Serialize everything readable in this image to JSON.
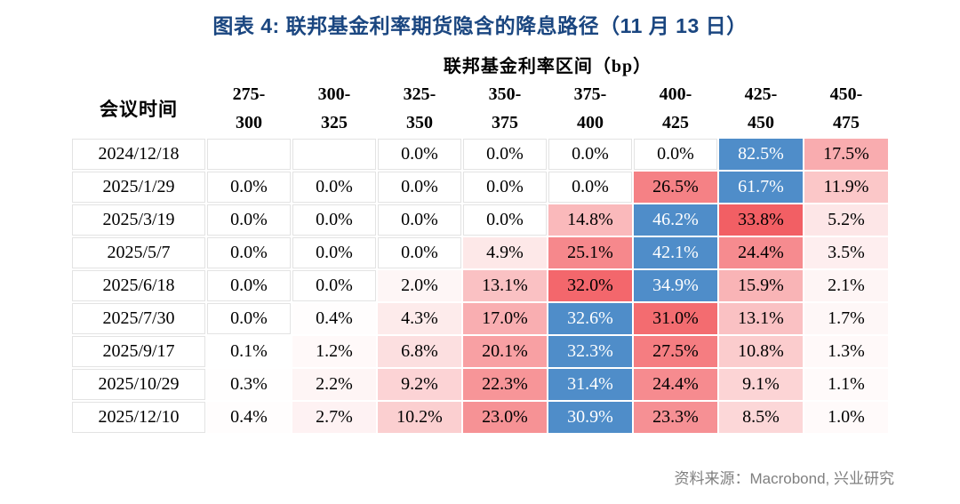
{
  "title": "图表 4:  联邦基金利率期货隐含的降息路径（11 月 13 日）",
  "table": {
    "group_header": "联邦基金利率区间（bp）",
    "corner_header": "会议时间",
    "columns": [
      [
        "275-",
        "300"
      ],
      [
        "300-",
        "325"
      ],
      [
        "325-",
        "350"
      ],
      [
        "350-",
        "375"
      ],
      [
        "375-",
        "400"
      ],
      [
        "400-",
        "425"
      ],
      [
        "425-",
        "450"
      ],
      [
        "450-",
        "475"
      ]
    ],
    "rows": [
      {
        "date": "2024/12/18",
        "cells": [
          "",
          "",
          "0.0%",
          "0.0%",
          "0.0%",
          "0.0%",
          "82.5%",
          "17.5%"
        ]
      },
      {
        "date": "2025/1/29",
        "cells": [
          "0.0%",
          "0.0%",
          "0.0%",
          "0.0%",
          "0.0%",
          "26.5%",
          "61.7%",
          "11.9%"
        ]
      },
      {
        "date": "2025/3/19",
        "cells": [
          "0.0%",
          "0.0%",
          "0.0%",
          "0.0%",
          "14.8%",
          "46.2%",
          "33.8%",
          "5.2%"
        ]
      },
      {
        "date": "2025/5/7",
        "cells": [
          "0.0%",
          "0.0%",
          "0.0%",
          "4.9%",
          "25.1%",
          "42.1%",
          "24.4%",
          "3.5%"
        ]
      },
      {
        "date": "2025/6/18",
        "cells": [
          "0.0%",
          "0.0%",
          "2.0%",
          "13.1%",
          "32.0%",
          "34.9%",
          "15.9%",
          "2.1%"
        ]
      },
      {
        "date": "2025/7/30",
        "cells": [
          "0.0%",
          "0.4%",
          "4.3%",
          "17.0%",
          "32.6%",
          "31.0%",
          "13.1%",
          "1.7%"
        ]
      },
      {
        "date": "2025/9/17",
        "cells": [
          "0.1%",
          "1.2%",
          "6.8%",
          "20.1%",
          "32.3%",
          "27.5%",
          "10.8%",
          "1.3%"
        ]
      },
      {
        "date": "2025/10/29",
        "cells": [
          "0.3%",
          "2.2%",
          "9.2%",
          "22.3%",
          "31.4%",
          "24.4%",
          "9.1%",
          "1.1%"
        ]
      },
      {
        "date": "2025/12/10",
        "cells": [
          "0.4%",
          "2.7%",
          "10.2%",
          "23.0%",
          "30.9%",
          "23.3%",
          "8.5%",
          "1.0%"
        ]
      }
    ]
  },
  "source": "资料来源：Macrobond, 兴业研究",
  "colors": {
    "title_navy": "#1A4680",
    "highlight_blue": "#4F8DC9",
    "heat_red": "#F2595E",
    "source_gray": "#7F7F7F",
    "grid_gray": "#E3E3E3"
  },
  "heatmap": {
    "red_full_scale_percent": 35,
    "highlight_rule": "row maximum shown in blue with white text; other cells shaded white-to-red by magnitude"
  },
  "chart_data": {
    "type": "heatmap",
    "title": "联邦基金利率期货隐含的降息路径（11 月 13 日）",
    "x_axis_label": "联邦基金利率区间（bp）",
    "y_axis_label": "会议时间",
    "x_categories": [
      "275-300",
      "300-325",
      "325-350",
      "350-375",
      "375-400",
      "400-425",
      "425-450",
      "450-475"
    ],
    "y_categories": [
      "2024/12/18",
      "2025/1/29",
      "2025/3/19",
      "2025/5/7",
      "2025/6/18",
      "2025/7/30",
      "2025/9/17",
      "2025/10/29",
      "2025/12/10"
    ],
    "values_percent": [
      [
        null,
        null,
        0.0,
        0.0,
        0.0,
        0.0,
        82.5,
        17.5
      ],
      [
        0.0,
        0.0,
        0.0,
        0.0,
        0.0,
        26.5,
        61.7,
        11.9
      ],
      [
        0.0,
        0.0,
        0.0,
        0.0,
        14.8,
        46.2,
        33.8,
        5.2
      ],
      [
        0.0,
        0.0,
        0.0,
        4.9,
        25.1,
        42.1,
        24.4,
        3.5
      ],
      [
        0.0,
        0.0,
        2.0,
        13.1,
        32.0,
        34.9,
        15.9,
        2.1
      ],
      [
        0.0,
        0.4,
        4.3,
        17.0,
        32.6,
        31.0,
        13.1,
        1.7
      ],
      [
        0.1,
        1.2,
        6.8,
        20.1,
        32.3,
        27.5,
        10.8,
        1.3
      ],
      [
        0.3,
        2.2,
        9.2,
        22.3,
        31.4,
        24.4,
        9.1,
        1.1
      ],
      [
        0.4,
        2.7,
        10.2,
        23.0,
        30.9,
        23.3,
        8.5,
        1.0
      ]
    ],
    "legend": "blue = most likely rate range per meeting; red intensity = probability"
  }
}
